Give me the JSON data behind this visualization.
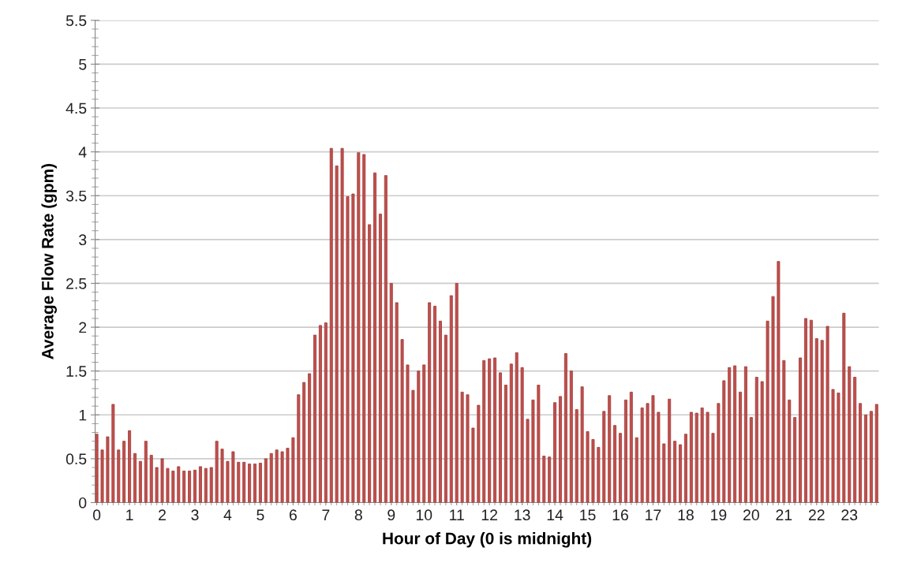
{
  "chart_data": {
    "type": "bar",
    "xlabel": "Hour of Day (0 is midnight)",
    "ylabel": "Average Flow Rate (gpm)",
    "x": [
      0,
      0.167,
      0.333,
      0.5,
      0.667,
      0.833,
      1,
      1.167,
      1.333,
      1.5,
      1.667,
      1.833,
      2,
      2.167,
      2.333,
      2.5,
      2.667,
      2.833,
      3,
      3.167,
      3.333,
      3.5,
      3.667,
      3.833,
      4,
      4.167,
      4.333,
      4.5,
      4.667,
      4.833,
      5,
      5.167,
      5.333,
      5.5,
      5.667,
      5.833,
      6,
      6.167,
      6.333,
      6.5,
      6.667,
      6.833,
      7,
      7.167,
      7.333,
      7.5,
      7.667,
      7.833,
      8,
      8.167,
      8.333,
      8.5,
      8.667,
      8.833,
      9,
      9.167,
      9.333,
      9.5,
      9.667,
      9.833,
      10,
      10.167,
      10.333,
      10.5,
      10.667,
      10.833,
      11,
      11.167,
      11.333,
      11.5,
      11.667,
      11.833,
      12,
      12.167,
      12.333,
      12.5,
      12.667,
      12.833,
      13,
      13.167,
      13.333,
      13.5,
      13.667,
      13.833,
      14,
      14.167,
      14.333,
      14.5,
      14.667,
      14.833,
      15,
      15.167,
      15.333,
      15.5,
      15.667,
      15.833,
      16,
      16.167,
      16.333,
      16.5,
      16.667,
      16.833,
      17,
      17.167,
      17.333,
      17.5,
      17.667,
      17.833,
      18,
      18.167,
      18.333,
      18.5,
      18.667,
      18.833,
      19,
      19.167,
      19.333,
      19.5,
      19.667,
      19.833,
      20,
      20.167,
      20.333,
      20.5,
      20.667,
      20.833,
      21,
      21.167,
      21.333,
      21.5,
      21.667,
      21.833,
      22,
      22.167,
      22.333,
      22.5,
      22.667,
      22.833,
      23,
      23.167,
      23.333,
      23.5,
      23.667,
      23.833
    ],
    "series": [
      {
        "color": "#c0504d",
        "values": [
          0.78,
          0.6,
          0.75,
          1.12,
          0.6,
          0.7,
          0.82,
          0.56,
          0.47,
          0.7,
          0.54,
          0.4,
          0.5,
          0.39,
          0.36,
          0.41,
          0.36,
          0.36,
          0.37,
          0.41,
          0.39,
          0.4,
          0.7,
          0.61,
          0.47,
          0.58,
          0.46,
          0.46,
          0.44,
          0.44,
          0.45,
          0.5,
          0.56,
          0.6,
          0.58,
          0.62,
          0.74,
          1.23,
          1.37,
          1.47,
          1.91,
          2.02,
          2.05,
          4.04,
          3.84,
          4.04,
          3.49,
          3.52,
          3.99,
          3.97,
          3.17,
          3.76,
          3.29,
          3.73,
          2.5,
          2.28,
          1.86,
          1.57,
          1.28,
          1.5,
          1.57,
          2.28,
          2.24,
          2.07,
          1.91,
          2.36,
          2.5,
          1.26,
          1.23,
          0.85,
          1.11,
          1.62,
          1.64,
          1.65,
          1.48,
          1.34,
          1.58,
          1.71,
          1.54,
          0.95,
          1.17,
          1.34,
          0.53,
          0.52,
          1.14,
          1.21,
          1.7,
          1.5,
          1.06,
          1.32,
          0.81,
          0.72,
          0.63,
          1.04,
          1.22,
          0.88,
          0.79,
          1.17,
          1.26,
          0.74,
          1.08,
          1.13,
          1.22,
          1.03,
          0.67,
          1.18,
          0.7,
          0.66,
          0.78,
          1.03,
          1.02,
          1.08,
          1.03,
          0.79,
          1.13,
          1.39,
          1.54,
          1.56,
          1.26,
          1.55,
          0.97,
          1.43,
          1.38,
          2.07,
          2.35,
          2.75,
          1.62,
          1.17,
          0.97,
          1.65,
          2.1,
          2.08,
          1.87,
          1.85,
          2.01,
          1.29,
          1.25,
          2.16,
          1.55,
          1.43,
          1.13,
          1.0,
          1.04,
          1.12
        ]
      }
    ],
    "xlim": [
      -0.05,
      23.9
    ],
    "xticks": [
      0,
      1,
      2,
      3,
      4,
      5,
      6,
      7,
      8,
      9,
      10,
      11,
      12,
      13,
      14,
      15,
      16,
      17,
      18,
      19,
      20,
      21,
      22,
      23
    ],
    "ylim": [
      0,
      5.5
    ],
    "yticks": [
      0,
      0.5,
      1,
      1.5,
      2,
      2.5,
      3,
      3.5,
      4,
      4.5,
      5,
      5.5
    ],
    "grid": "y"
  }
}
